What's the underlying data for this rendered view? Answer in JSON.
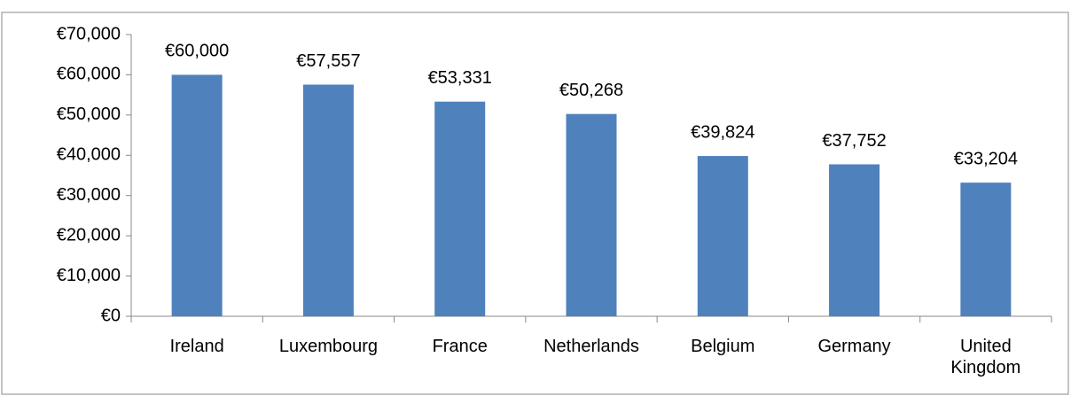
{
  "chart_data": {
    "type": "bar",
    "categories": [
      "Ireland",
      "Luxembourg",
      "France",
      "Netherlands",
      "Belgium",
      "Germany",
      "United Kingdom"
    ],
    "values": [
      60000,
      57557,
      53331,
      50268,
      39824,
      37752,
      33204
    ],
    "value_labels": [
      "€60,000",
      "€57,557",
      "€53,331",
      "€50,268",
      "€39,824",
      "€37,752",
      "€33,204"
    ],
    "color": "#4f81bd",
    "ylim": [
      0,
      70000
    ],
    "yticks": [
      {
        "value": 0,
        "label": "€0"
      },
      {
        "value": 10000,
        "label": "€10,000"
      },
      {
        "value": 20000,
        "label": "€20,000"
      },
      {
        "value": 30000,
        "label": "€30,000"
      },
      {
        "value": 40000,
        "label": "€40,000"
      },
      {
        "value": 50000,
        "label": "€50,000"
      },
      {
        "value": 60000,
        "label": "€60,000"
      },
      {
        "value": 70000,
        "label": "€70,000"
      }
    ],
    "grid": false
  }
}
